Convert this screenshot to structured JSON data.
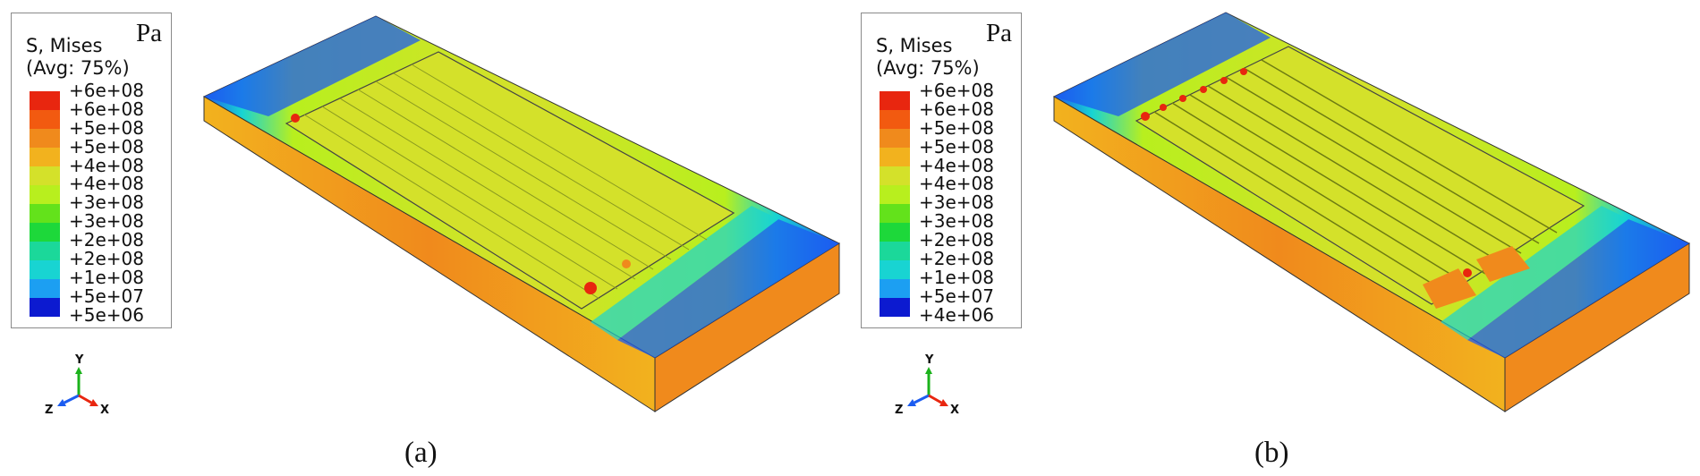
{
  "colors": {
    "contour": [
      "#e8260f",
      "#f25a10",
      "#f08a1c",
      "#f2b21e",
      "#d4e12a",
      "#b8ef1e",
      "#63e21b",
      "#1dd83a",
      "#1bd89a",
      "#18d4d2",
      "#1c9ff2",
      "#1c5cf0",
      "#0c1ad0"
    ],
    "legend_border": "#8a8a8a"
  },
  "panels": [
    {
      "id": "a",
      "label": "(a)",
      "legend": {
        "title": "S, Mises\n(Avg: 75%)",
        "unit": "Pa",
        "values": [
          "+6e+08",
          "+6e+08",
          "+5e+08",
          "+5e+08",
          "+4e+08",
          "+4e+08",
          "+3e+08",
          "+3e+08",
          "+2e+08",
          "+2e+08",
          "+1e+08",
          "+5e+07",
          "+5e+06"
        ]
      },
      "axes": {
        "y": "Y",
        "z": "Z",
        "x": "X"
      }
    },
    {
      "id": "b",
      "label": "(b)",
      "legend": {
        "title": "S, Mises\n(Avg: 75%)",
        "unit": "Pa",
        "values": [
          "+6e+08",
          "+6e+08",
          "+5e+08",
          "+5e+08",
          "+4e+08",
          "+4e+08",
          "+3e+08",
          "+3e+08",
          "+2e+08",
          "+2e+08",
          "+1e+08",
          "+5e+07",
          "+4e+06"
        ]
      },
      "axes": {
        "y": "Y",
        "z": "Z",
        "x": "X"
      }
    }
  ]
}
